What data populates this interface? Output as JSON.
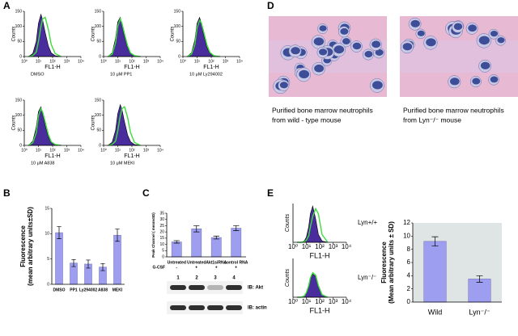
{
  "panel_labels": [
    "A",
    "B",
    "C",
    "D",
    "E"
  ],
  "chart_data": [
    {
      "type": "line",
      "xscale": "log",
      "xlabel": "FL1-H",
      "ylabel": "Counts",
      "caption": "DMSO",
      "xlim": [
        1,
        10000
      ],
      "ylim": [
        0,
        150
      ],
      "xticks": [
        {
          "value": 1,
          "label": "10⁰"
        },
        {
          "value": 10,
          "label": "10¹"
        },
        {
          "value": 100,
          "label": "10²"
        },
        {
          "value": 1000,
          "label": "10³"
        },
        {
          "value": 10000,
          "label": "10⁴"
        }
      ],
      "yticks": [
        0,
        50,
        100,
        150
      ],
      "x": [
        2,
        4,
        7,
        10,
        15,
        20,
        30,
        50,
        80,
        150,
        400
      ],
      "series": [
        {
          "color": "#4a2d9c",
          "fill": true,
          "values": [
            0,
            10,
            50,
            110,
            140,
            120,
            80,
            35,
            12,
            3,
            0
          ]
        },
        {
          "color": "#3ddc3d",
          "values": [
            0,
            3,
            15,
            50,
            100,
            125,
            130,
            90,
            40,
            10,
            0
          ]
        }
      ]
    },
    {
      "type": "line",
      "xscale": "log",
      "xlabel": "FL1-H",
      "ylabel": "Counts",
      "caption": "10 μM PP1",
      "xlim": [
        1,
        10000
      ],
      "ylim": [
        0,
        150
      ],
      "xticks": [
        {
          "value": 1,
          "label": "10⁰"
        },
        {
          "value": 10,
          "label": "10¹"
        },
        {
          "value": 100,
          "label": "10²"
        },
        {
          "value": 1000,
          "label": "10³"
        },
        {
          "value": 10000,
          "label": "10⁴"
        }
      ],
      "yticks": [
        0,
        50,
        100,
        150
      ],
      "x": [
        2,
        4,
        7,
        10,
        15,
        20,
        30,
        50,
        80,
        150,
        400
      ],
      "series": [
        {
          "color": "#4a2d9c",
          "fill": true,
          "values": [
            0,
            12,
            60,
            115,
            130,
            105,
            65,
            30,
            10,
            2,
            0
          ]
        },
        {
          "color": "#3ddc3d",
          "values": [
            0,
            8,
            45,
            100,
            125,
            110,
            75,
            35,
            12,
            3,
            0
          ]
        }
      ]
    },
    {
      "type": "line",
      "xscale": "log",
      "xlabel": "FL1-H",
      "ylabel": "Counts",
      "caption": "10 μM Ly294002",
      "xlim": [
        1,
        10000
      ],
      "ylim": [
        0,
        150
      ],
      "xticks": [
        {
          "value": 1,
          "label": "10⁰"
        },
        {
          "value": 10,
          "label": "10¹"
        },
        {
          "value": 100,
          "label": "10²"
        },
        {
          "value": 1000,
          "label": "10³"
        },
        {
          "value": 10000,
          "label": "10⁴"
        }
      ],
      "yticks": [
        0,
        50,
        100,
        150
      ],
      "x": [
        2,
        4,
        7,
        10,
        15,
        20,
        30,
        50,
        80,
        150,
        400
      ],
      "series": [
        {
          "color": "#4a2d9c",
          "fill": true,
          "values": [
            0,
            12,
            55,
            110,
            130,
            110,
            70,
            30,
            10,
            2,
            0
          ]
        },
        {
          "color": "#3ddc3d",
          "values": [
            0,
            8,
            40,
            95,
            120,
            112,
            80,
            38,
            14,
            3,
            0
          ]
        }
      ]
    },
    {
      "type": "line",
      "xscale": "log",
      "xlabel": "FL1-H",
      "ylabel": "Counts",
      "caption": "10 μM  A838",
      "xlim": [
        1,
        10000
      ],
      "ylim": [
        0,
        150
      ],
      "xticks": [
        {
          "value": 1,
          "label": "10⁰"
        },
        {
          "value": 10,
          "label": "10¹"
        },
        {
          "value": 100,
          "label": "10²"
        },
        {
          "value": 1000,
          "label": "10³"
        },
        {
          "value": 10000,
          "label": "10⁴"
        }
      ],
      "yticks": [
        0,
        50,
        100,
        150
      ],
      "x": [
        2,
        4,
        7,
        10,
        15,
        20,
        30,
        50,
        80,
        150,
        400
      ],
      "series": [
        {
          "color": "#4a2d9c",
          "fill": true,
          "values": [
            0,
            14,
            60,
            112,
            128,
            104,
            66,
            28,
            9,
            2,
            0
          ]
        },
        {
          "color": "#3ddc3d",
          "values": [
            0,
            9,
            42,
            98,
            122,
            110,
            78,
            36,
            12,
            3,
            0
          ]
        }
      ]
    },
    {
      "type": "line",
      "xscale": "log",
      "xlabel": "FL1-H",
      "ylabel": "Counts",
      "caption": "10 μM MEKI",
      "xlim": [
        1,
        10000
      ],
      "ylim": [
        0,
        150
      ],
      "xticks": [
        {
          "value": 1,
          "label": "10⁰"
        },
        {
          "value": 10,
          "label": "10¹"
        },
        {
          "value": 100,
          "label": "10²"
        },
        {
          "value": 1000,
          "label": "10³"
        },
        {
          "value": 10000,
          "label": "10⁴"
        }
      ],
      "yticks": [
        0,
        50,
        100,
        150
      ],
      "x": [
        2,
        4,
        7,
        10,
        15,
        20,
        30,
        50,
        80,
        150,
        400
      ],
      "series": [
        {
          "color": "#4a2d9c",
          "fill": true,
          "values": [
            0,
            10,
            50,
            105,
            135,
            118,
            78,
            34,
            12,
            3,
            0
          ]
        },
        {
          "color": "#3ddc3d",
          "values": [
            0,
            3,
            14,
            48,
            98,
            122,
            128,
            92,
            42,
            10,
            0
          ]
        }
      ]
    },
    {
      "type": "bar",
      "ylabel": [
        "Fluorescence",
        "(mean arbitrary units±SD)"
      ],
      "categories": [
        "DMSO",
        "PP1",
        "Ly294002",
        "A838",
        "MEKI"
      ],
      "values": [
        10.2,
        4.2,
        4.0,
        3.4,
        9.7
      ],
      "errors": [
        1.2,
        0.7,
        0.8,
        0.7,
        1.2
      ],
      "color": "#9e9ef0",
      "ylim": [
        0,
        15
      ],
      "yticks": [
        0,
        5,
        10,
        15
      ]
    },
    {
      "type": "bar",
      "ylabel": [
        "Peak Channel ( mean±SD)"
      ],
      "categories": [
        "Untreated",
        "Untreated",
        "Akt1siRNA",
        "control RNA"
      ],
      "condition_label": "G-CSF",
      "conditions": [
        "-",
        "+",
        "+",
        "+"
      ],
      "values": [
        12,
        22.5,
        15.5,
        23
      ],
      "errors": [
        1,
        2.5,
        1.2,
        2
      ],
      "color": "#9e9ef0",
      "ylim": [
        0,
        35
      ],
      "yticks": [
        0,
        5,
        10,
        15,
        20,
        25,
        30,
        35
      ]
    },
    {
      "type": "line",
      "xscale": "log",
      "xlabel": "FL1-H",
      "ylabel": "Counts",
      "caption": "Lyn+/+",
      "xlim": [
        1,
        10000
      ],
      "ylim": [
        0,
        150
      ],
      "xticks": [
        {
          "value": 1,
          "label": "10⁰"
        },
        {
          "value": 10,
          "label": "10¹"
        },
        {
          "value": 100,
          "label": "10²"
        },
        {
          "value": 1000,
          "label": "10³"
        },
        {
          "value": 10000,
          "label": "10⁴"
        }
      ],
      "x": [
        2,
        4,
        7,
        10,
        15,
        20,
        30,
        50,
        80,
        150,
        400
      ],
      "series": [
        {
          "color": "#4a2d9c",
          "fill": true,
          "values": [
            0,
            0,
            5,
            20,
            60,
            110,
            140,
            90,
            30,
            5,
            0
          ]
        },
        {
          "color": "#3ddc3d",
          "values": [
            0,
            0,
            2,
            8,
            25,
            60,
            100,
            130,
            110,
            30,
            0
          ]
        }
      ]
    },
    {
      "type": "line",
      "xscale": "log",
      "xlabel": "FL1-H",
      "ylabel": "Counts",
      "caption": "Lyn⁻/⁻",
      "xlim": [
        1,
        10000
      ],
      "ylim": [
        0,
        150
      ],
      "xticks": [
        {
          "value": 1,
          "label": "10⁰"
        },
        {
          "value": 10,
          "label": "10¹"
        },
        {
          "value": 100,
          "label": "10²"
        },
        {
          "value": 1000,
          "label": "10³"
        },
        {
          "value": 10000,
          "label": "10⁴"
        }
      ],
      "x": [
        2,
        4,
        7,
        10,
        15,
        20,
        30,
        50,
        80,
        150,
        400
      ],
      "series": [
        {
          "color": "#4a2d9c",
          "fill": true,
          "values": [
            0,
            0,
            5,
            15,
            40,
            70,
            90,
            80,
            40,
            8,
            0
          ]
        },
        {
          "color": "#3ddc3d",
          "values": [
            0,
            0,
            5,
            18,
            45,
            75,
            95,
            85,
            45,
            10,
            0
          ]
        }
      ]
    },
    {
      "type": "bar",
      "ylabel": [
        "Fluorescence",
        "(Mean arbitrary units ± SD)"
      ],
      "categories": [
        "Wild",
        "Lyn⁻/⁻"
      ],
      "values": [
        9.2,
        3.5
      ],
      "errors": [
        0.7,
        0.5
      ],
      "color": "#9e9ef0",
      "background": "#dfe4e4",
      "ylim": [
        0,
        12
      ],
      "yticks": [
        0,
        2,
        4,
        6,
        8,
        10,
        12
      ]
    }
  ],
  "blot": {
    "lanes": [
      "1",
      "2",
      "3",
      "4"
    ],
    "rows": [
      "IB: Akt",
      "IB: actin"
    ]
  },
  "micrographs": [
    {
      "caption": [
        "Purified bone marrow neutrophils",
        "from wild - type mouse"
      ]
    },
    {
      "caption": [
        "Purified bone marrow neutrophils",
        "from Lyn⁻/⁻ mouse"
      ]
    }
  ]
}
